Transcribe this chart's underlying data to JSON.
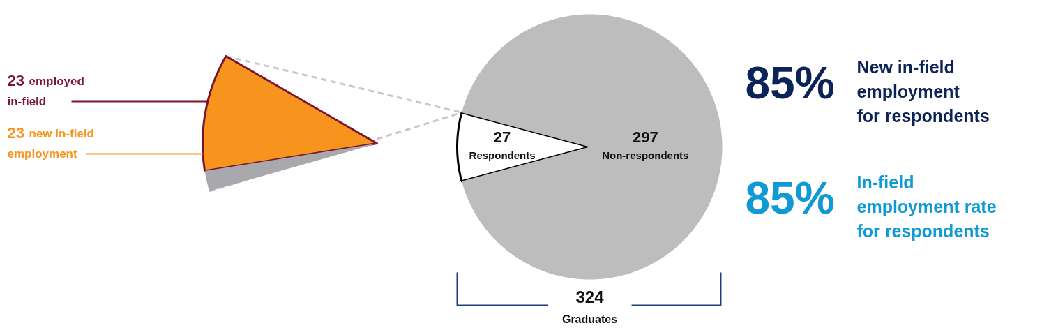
{
  "chart_data": [
    {
      "type": "pie",
      "categories": [
        "Respondents",
        "Non-respondents"
      ],
      "values": [
        27,
        297
      ],
      "colors": [
        "#ffffff",
        "#bdbdbd"
      ],
      "data_labels": true,
      "annotations": [
        "324",
        "Graduates"
      ]
    },
    {
      "type": "pie",
      "categories": [
        "new in-field\nemployment",
        null
      ],
      "values": [
        23,
        4
      ],
      "colors": [
        "#f7941d",
        "#a7a9ac"
      ],
      "value_labels": [
        "23",
        null
      ],
      "annotations": [
        "23 employed\nin-field"
      ]
    },
    {
      "type": "other",
      "categories": [
        "New in-field\nemployment\nfor respondents",
        "In-field\nemployment rate\nfor respondents"
      ],
      "value_labels": [
        "85%",
        "85%"
      ],
      "colors": [
        "#0b2356",
        "#0f9ad6"
      ]
    }
  ]
}
